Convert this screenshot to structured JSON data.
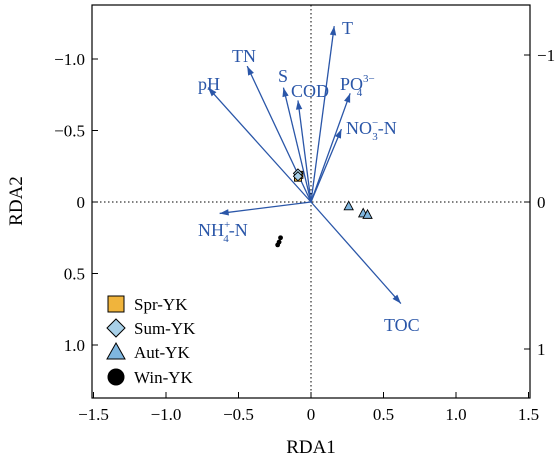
{
  "chart_data": {
    "type": "scatter",
    "xlabel": "RDA1",
    "ylabel": "RDA2",
    "xlim": [
      -1.55,
      1.55
    ],
    "ylim": [
      -1.38,
      1.38
    ],
    "xticks": [
      "-1.5",
      "-1.0",
      "-0.5",
      "0",
      "0.5",
      "1.0",
      "1.5"
    ],
    "xtick_values": [
      -1.5,
      -1.0,
      -0.5,
      0,
      0.5,
      1.0,
      1.5
    ],
    "yticks": [
      "-1.0",
      "-0.5",
      "0",
      "0.5",
      "1.0"
    ],
    "ytick_values": [
      1.0,
      0.5,
      0,
      -0.5,
      -1.0
    ],
    "right_yticks": [
      "1",
      "0",
      "-1"
    ],
    "right_ytick_values": [
      -1.0,
      0,
      1.0
    ],
    "reference_lines": "dotted lines at x = 0 and y = 0",
    "colors": {
      "vector": "#2a56a8",
      "spr": "#f0b43c",
      "sum": "#a8d0e8",
      "aut": "#7fb6df",
      "win": "#000000"
    },
    "vectors": [
      {
        "name": "T",
        "x": 0.16,
        "y": 1.23
      },
      {
        "name": "TN",
        "x": -0.44,
        "y": 0.95
      },
      {
        "name": "pH",
        "x": -0.71,
        "y": 0.8
      },
      {
        "name": "S",
        "x": -0.19,
        "y": 0.8
      },
      {
        "name": "COD",
        "x": -0.09,
        "y": 0.71
      },
      {
        "name": "PO43-",
        "x": 0.27,
        "y": 0.76
      },
      {
        "name": "NO3--N",
        "x": 0.21,
        "y": 0.51
      },
      {
        "name": "NH4+-N",
        "x": -0.63,
        "y": -0.08
      },
      {
        "name": "TOC",
        "x": 0.62,
        "y": -0.71
      }
    ],
    "vector_labels": {
      "T": "T",
      "TN": "TN",
      "pH": "pH",
      "S": "S",
      "COD": "COD",
      "PO": "PO",
      "PO_sup": "3−",
      "PO_sub": "4",
      "NO": "NO",
      "NO_sup": "−",
      "NO_sub": "3",
      "NO_tail": "-N",
      "NH": "NH",
      "NH_sup": "+",
      "NH_sub": "4",
      "NH_tail": "-N",
      "TOC": "TOC"
    },
    "series": [
      {
        "name": "Spr-YK",
        "marker": "square",
        "points": [
          [
            -0.09,
            0.17
          ],
          [
            -0.08,
            0.19
          ]
        ]
      },
      {
        "name": "Sum-YK",
        "marker": "diamond",
        "points": [
          [
            -0.09,
            0.2
          ],
          [
            -0.09,
            0.18
          ]
        ]
      },
      {
        "name": "Aut-YK",
        "marker": "triangle",
        "points": [
          [
            0.26,
            -0.03
          ],
          [
            0.36,
            -0.08
          ],
          [
            0.39,
            -0.09
          ]
        ]
      },
      {
        "name": "Win-YK",
        "marker": "circle",
        "points": [
          [
            -0.21,
            -0.25
          ],
          [
            -0.22,
            -0.28
          ],
          [
            -0.23,
            -0.3
          ]
        ]
      }
    ],
    "legend_position": "bottom-left"
  }
}
